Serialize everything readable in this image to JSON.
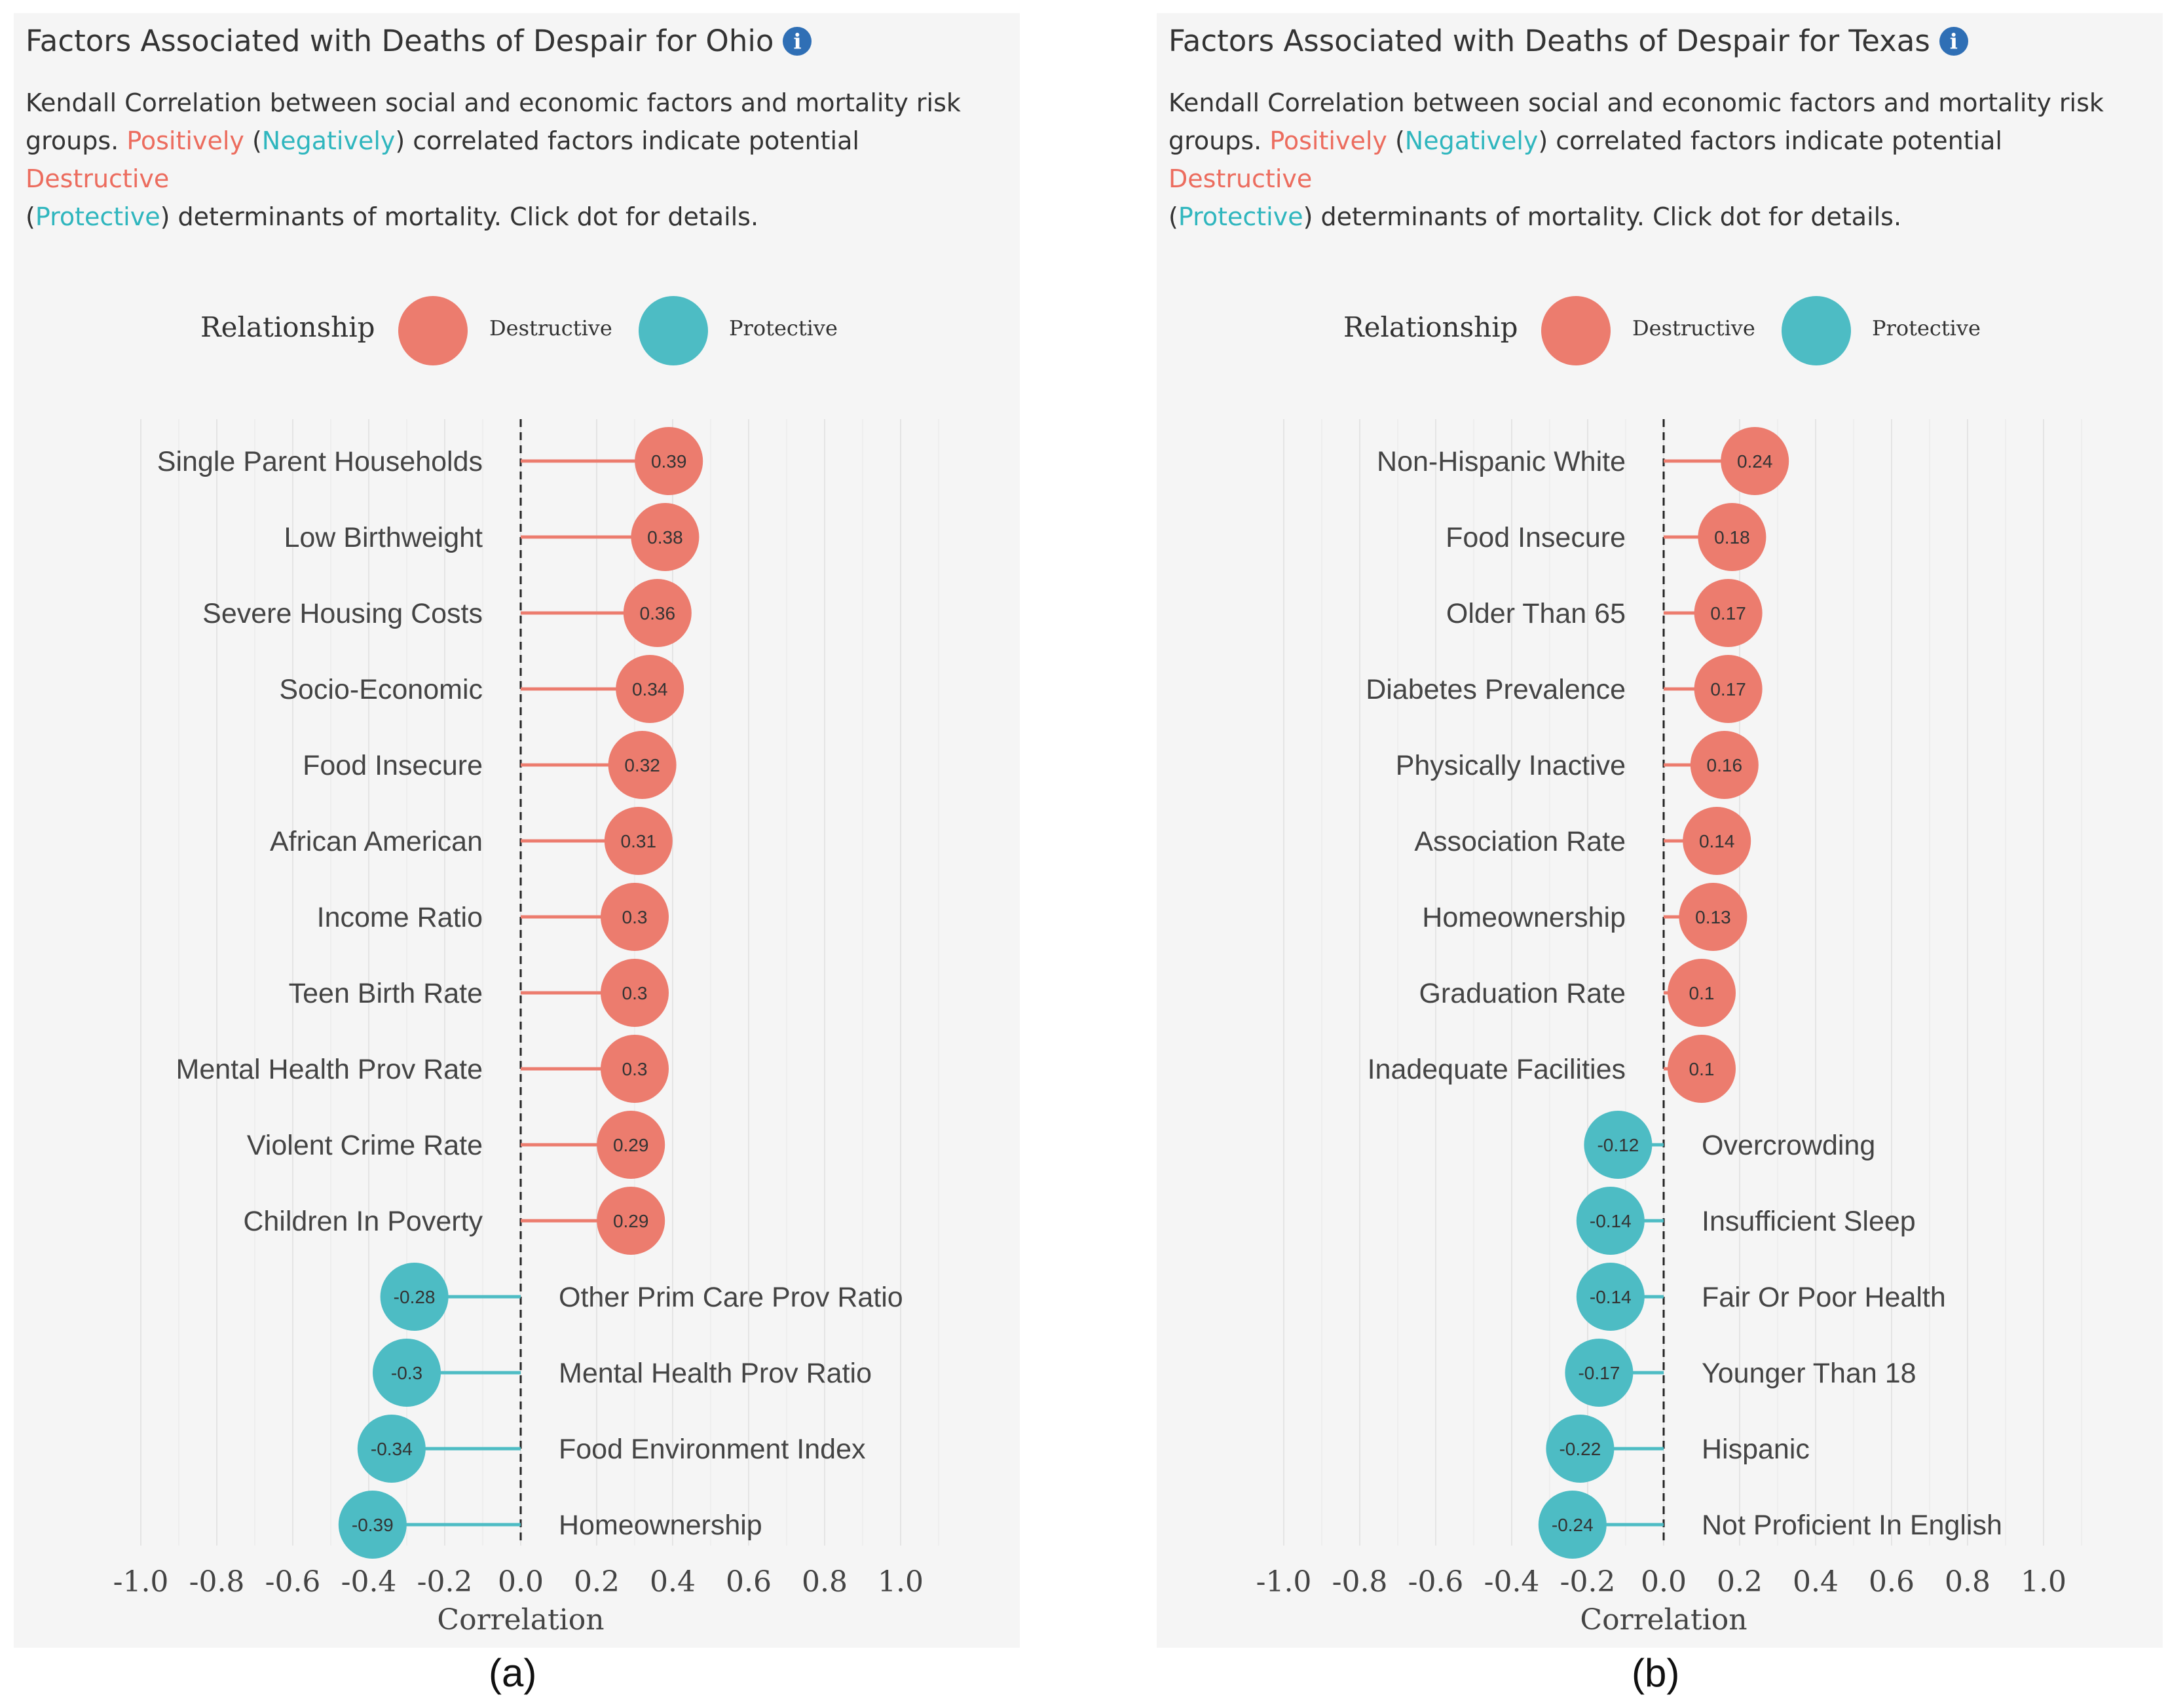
{
  "panels": [
    {
      "id": "a",
      "title": "Factors Associated with Deaths of Despair for Ohio",
      "description": {
        "line1": "Kendall Correlation between social and economic factors and mortality risk",
        "part_groups": "groups. ",
        "positively": "Positively",
        "open_paren": " (",
        "negatively": "Negatively",
        "mid": ") correlated factors indicate potential ",
        "destructive": "Destructive",
        "open_paren2": "(",
        "protective": "Protective",
        "tail": ") determinants of mortality. Click dot for details."
      },
      "legend": {
        "title": "Relationship",
        "destructive": "Destructive",
        "protective": "Protective"
      },
      "caption": "(a)"
    },
    {
      "id": "b",
      "title": "Factors Associated with Deaths of Despair for Texas",
      "description": {
        "line1": "Kendall Correlation between social and economic factors and mortality risk",
        "part_groups": "groups. ",
        "positively": "Positively",
        "open_paren": " (",
        "negatively": "Negatively",
        "mid": ") correlated factors indicate potential ",
        "destructive": "Destructive",
        "open_paren2": "(",
        "protective": "Protective",
        "tail": ") determinants of mortality. Click dot for details."
      },
      "legend": {
        "title": "Relationship",
        "destructive": "Destructive",
        "protective": "Protective"
      },
      "caption": "(b)"
    }
  ],
  "colors": {
    "destructive": "#ec7c6e",
    "protective": "#4dbcc4",
    "destructive_text": "#ec6c5e",
    "protective_text": "#2fb6be"
  },
  "chart_data": [
    {
      "type": "lollipop",
      "title": "Factors Associated with Deaths of Despair for Ohio",
      "xlabel": "Correlation",
      "xlim": [
        -1.0,
        1.0
      ],
      "xticks": [
        "-1.0",
        "-0.8",
        "-0.6",
        "-0.4",
        "-0.2",
        "0.0",
        "0.2",
        "0.4",
        "0.6",
        "0.8",
        "1.0"
      ],
      "categories": [
        "Single Parent Households",
        "Low Birthweight",
        "Severe Housing Costs",
        "Socio-Economic",
        "Food Insecure",
        "African American",
        "Income Ratio",
        "Teen Birth Rate",
        "Mental Health Prov Rate",
        "Violent Crime Rate",
        "Children In Poverty",
        "Other Prim Care Prov Ratio",
        "Mental Health Prov Ratio",
        "Food Environment Index",
        "Homeownership"
      ],
      "values": [
        0.39,
        0.38,
        0.36,
        0.34,
        0.32,
        0.31,
        0.3,
        0.3,
        0.3,
        0.29,
        0.29,
        -0.28,
        -0.3,
        -0.34,
        -0.39
      ],
      "value_labels": [
        "0.39",
        "0.38",
        "0.36",
        "0.34",
        "0.32",
        "0.31",
        "0.3",
        "0.3",
        "0.3",
        "0.29",
        "0.29",
        "-0.28",
        "-0.3",
        "-0.34",
        "-0.39"
      ]
    },
    {
      "type": "lollipop",
      "title": "Factors Associated with Deaths of Despair for Texas",
      "xlabel": "Correlation",
      "xlim": [
        -1.0,
        1.0
      ],
      "xticks": [
        "-1.0",
        "-0.8",
        "-0.6",
        "-0.4",
        "-0.2",
        "0.0",
        "0.2",
        "0.4",
        "0.6",
        "0.8",
        "1.0"
      ],
      "categories": [
        "Non-Hispanic White",
        "Food Insecure",
        "Older Than 65",
        "Diabetes Prevalence",
        "Physically Inactive",
        "Association Rate",
        "Homeownership",
        "Graduation Rate",
        "Inadequate Facilities",
        "Overcrowding",
        "Insufficient Sleep",
        "Fair Or Poor Health",
        "Younger Than 18",
        "Hispanic",
        "Not Proficient In English"
      ],
      "values": [
        0.24,
        0.18,
        0.17,
        0.17,
        0.16,
        0.14,
        0.13,
        0.1,
        0.1,
        -0.12,
        -0.14,
        -0.14,
        -0.17,
        -0.22,
        -0.24
      ],
      "value_labels": [
        "0.24",
        "0.18",
        "0.17",
        "0.17",
        "0.16",
        "0.14",
        "0.13",
        "0.1",
        "0.1",
        "-0.12",
        "-0.14",
        "-0.14",
        "-0.17",
        "-0.22",
        "-0.24"
      ]
    }
  ]
}
